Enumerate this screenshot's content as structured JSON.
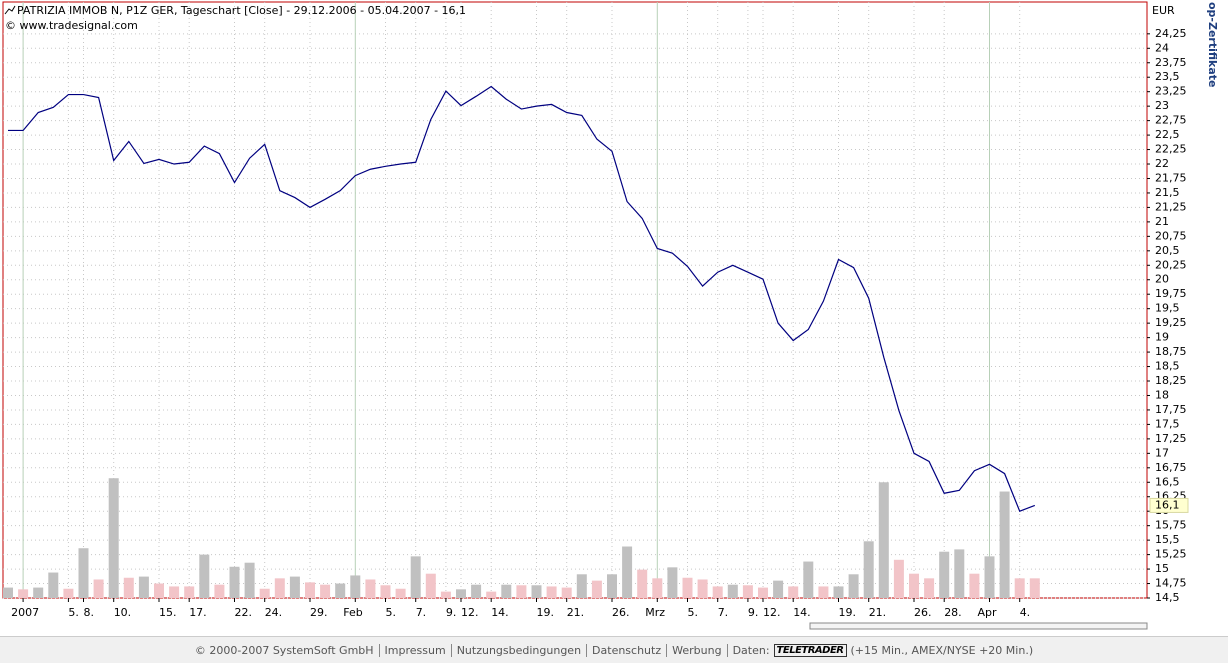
{
  "chart_data": {
    "type": "line",
    "title": "PATRIZIA IMMOB N, P1Z GER, Tageschart [Close] - 29.12.2006 - 05.04.2007 - 16,1",
    "source": "© www.tradesignal.com",
    "unit": "EUR",
    "categories": [
      null,
      "2007",
      null,
      null,
      "5.",
      "8.",
      null,
      "10.",
      null,
      null,
      "15.",
      null,
      "17.",
      null,
      null,
      "22.",
      null,
      "24.",
      null,
      null,
      "29.",
      null,
      null,
      "Feb",
      null,
      "5.",
      null,
      "7.",
      null,
      "9.",
      "12.",
      null,
      "14.",
      null,
      null,
      "19.",
      null,
      "21.",
      null,
      null,
      "26.",
      null,
      null,
      "Mrz",
      null,
      "5.",
      null,
      "7.",
      null,
      "9.",
      "12.",
      null,
      "14.",
      null,
      null,
      "19.",
      null,
      "21.",
      null,
      null,
      "26.",
      null,
      "28.",
      null,
      null,
      "Apr",
      null,
      "4.",
      null
    ],
    "series": [
      {
        "color": "#000080",
        "values": [
          22.58,
          22.58,
          22.89,
          22.98,
          23.2,
          23.2,
          23.15,
          22.06,
          22.39,
          22.01,
          22.08,
          22.0,
          22.03,
          22.31,
          22.18,
          21.68,
          22.1,
          22.34,
          21.54,
          21.42,
          21.25,
          21.39,
          21.54,
          21.8,
          21.91,
          21.96,
          22.0,
          22.03,
          22.77,
          23.26,
          23.01,
          23.17,
          23.34,
          23.12,
          22.95,
          23.0,
          23.03,
          22.89,
          22.84,
          22.43,
          22.22,
          21.35,
          21.06,
          20.54,
          20.46,
          20.23,
          19.89,
          20.13,
          20.25,
          20.13,
          20.01,
          19.25,
          18.95,
          19.14,
          19.63,
          20.35,
          20.21,
          19.68,
          18.66,
          17.74,
          17.0,
          16.86,
          16.31,
          16.36,
          16.7,
          16.81,
          16.65,
          16.0,
          16.1
        ]
      }
    ],
    "volume": {
      "type": "bar",
      "values": [
        14.68,
        14.65,
        14.68,
        14.94,
        14.66,
        15.36,
        14.82,
        16.57,
        14.85,
        14.87,
        14.75,
        14.7,
        14.7,
        15.25,
        14.73,
        15.04,
        15.11,
        14.66,
        14.84,
        14.87,
        14.77,
        14.73,
        14.75,
        14.89,
        14.82,
        14.72,
        14.66,
        15.22,
        14.92,
        14.61,
        14.65,
        14.73,
        14.61,
        14.73,
        14.72,
        14.72,
        14.7,
        14.68,
        14.91,
        14.8,
        14.91,
        15.39,
        14.99,
        14.84,
        15.03,
        14.85,
        14.82,
        14.7,
        14.73,
        14.72,
        14.68,
        14.8,
        14.7,
        15.13,
        14.7,
        14.7,
        14.91,
        15.48,
        16.5,
        15.16,
        14.92,
        14.84,
        15.3,
        15.34,
        14.92,
        15.22,
        16.34,
        14.84,
        14.84
      ],
      "colors": [
        "#c0c0c0",
        "#f2c4c8",
        "#c0c0c0",
        "#c0c0c0",
        "#f2c4c8",
        "#c0c0c0",
        "#f2c4c8",
        "#c0c0c0",
        "#f2c4c8",
        "#c0c0c0",
        "#f2c4c8",
        "#f2c4c8",
        "#f2c4c8",
        "#c0c0c0",
        "#f2c4c8",
        "#c0c0c0",
        "#c0c0c0",
        "#f2c4c8",
        "#f2c4c8",
        "#c0c0c0",
        "#f2c4c8",
        "#f2c4c8",
        "#c0c0c0",
        "#c0c0c0",
        "#f2c4c8",
        "#f2c4c8",
        "#f2c4c8",
        "#c0c0c0",
        "#f2c4c8",
        "#f2c4c8",
        "#c0c0c0",
        "#c0c0c0",
        "#f2c4c8",
        "#c0c0c0",
        "#f2c4c8",
        "#c0c0c0",
        "#f2c4c8",
        "#f2c4c8",
        "#c0c0c0",
        "#f2c4c8",
        "#c0c0c0",
        "#c0c0c0",
        "#f2c4c8",
        "#f2c4c8",
        "#c0c0c0",
        "#f2c4c8",
        "#f2c4c8",
        "#f2c4c8",
        "#c0c0c0",
        "#f2c4c8",
        "#f2c4c8",
        "#c0c0c0",
        "#f2c4c8",
        "#c0c0c0",
        "#f2c4c8",
        "#c0c0c0",
        "#c0c0c0",
        "#c0c0c0",
        "#c0c0c0",
        "#f2c4c8",
        "#f2c4c8",
        "#f2c4c8",
        "#c0c0c0",
        "#c0c0c0",
        "#f2c4c8",
        "#c0c0c0",
        "#c0c0c0",
        "#f2c4c8",
        "#f2c4c8"
      ]
    },
    "last_value": {
      "value": 16.1,
      "label": "16,1"
    },
    "ylim": [
      14.5,
      24.8
    ],
    "yticks": [
      {
        "value": 14.5,
        "label": "14,5"
      },
      {
        "value": 14.75,
        "label": "14,75"
      },
      15,
      {
        "value": 15.25,
        "label": "15,25"
      },
      {
        "value": 15.5,
        "label": "15,5"
      },
      {
        "value": 15.75,
        "label": "15,75"
      },
      16,
      {
        "value": 16.25,
        "label": "16,25"
      },
      {
        "value": 16.5,
        "label": "16,5"
      },
      {
        "value": 16.75,
        "label": "16,75"
      },
      17,
      {
        "value": 17.25,
        "label": "17,25"
      },
      {
        "value": 17.5,
        "label": "17,5"
      },
      {
        "value": 17.75,
        "label": "17,75"
      },
      18,
      {
        "value": 18.25,
        "label": "18,25"
      },
      {
        "value": 18.5,
        "label": "18,5"
      },
      {
        "value": 18.75,
        "label": "18,75"
      },
      19,
      {
        "value": 19.25,
        "label": "19,25"
      },
      {
        "value": 19.5,
        "label": "19,5"
      },
      {
        "value": 19.75,
        "label": "19,75"
      },
      20,
      {
        "value": 20.25,
        "label": "20,25"
      },
      {
        "value": 20.5,
        "label": "20,5"
      },
      {
        "value": 20.75,
        "label": "20,75"
      },
      21,
      {
        "value": 21.25,
        "label": "21,25"
      },
      {
        "value": 21.5,
        "label": "21,5"
      },
      {
        "value": 21.75,
        "label": "21,75"
      },
      22,
      {
        "value": 22.25,
        "label": "22,25"
      },
      {
        "value": 22.5,
        "label": "22,5"
      },
      {
        "value": 22.75,
        "label": "22,75"
      },
      23,
      {
        "value": 23.25,
        "label": "23,25"
      },
      {
        "value": 23.5,
        "label": "23,5"
      },
      {
        "value": 23.75,
        "label": "23,75"
      },
      24,
      {
        "value": 24.25,
        "label": "24,25"
      }
    ],
    "grid": true
  },
  "side_text": "op-Zertifikate",
  "footer": {
    "copyright": "© 2000-2007 SystemSoft GmbH",
    "links": [
      "Impressum",
      "Nutzungsbedingungen",
      "Datenschutz",
      "Werbung"
    ],
    "data_label": "Daten:",
    "provider": "TELETRADER",
    "delay": "(+15 Min., AMEX/NYSE +20 Min.)"
  }
}
